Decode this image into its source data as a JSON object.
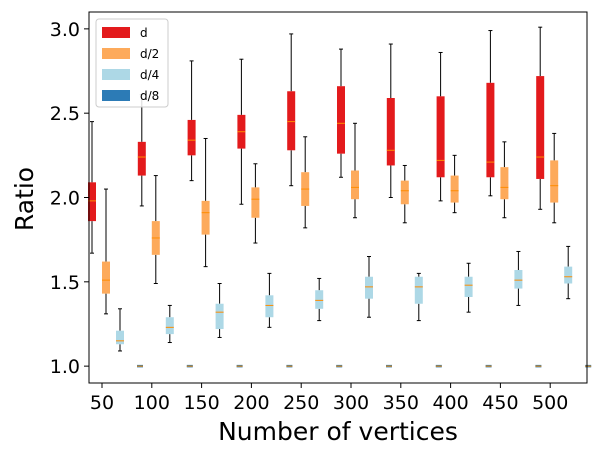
{
  "chart_data": {
    "type": "box",
    "xlabel": "Number of vertices",
    "ylabel": "Ratio",
    "ylim": [
      0.9,
      3.1
    ],
    "yticks": [
      "1.0",
      "1.5",
      "2.0",
      "2.5",
      "3.0"
    ],
    "categories": [
      "50",
      "100",
      "150",
      "200",
      "250",
      "300",
      "350",
      "400",
      "450",
      "500"
    ],
    "median_color": "#ff8c00",
    "legend_position": "top-left",
    "series": [
      {
        "name": "d",
        "color": "#e31a1c",
        "boxes": [
          {
            "whislo": 1.67,
            "q1": 1.86,
            "med": 1.98,
            "q3": 2.09,
            "whishi": 2.45
          },
          {
            "whislo": 1.95,
            "q1": 2.13,
            "med": 2.24,
            "q3": 2.33,
            "whishi": 2.61
          },
          {
            "whislo": 2.1,
            "q1": 2.25,
            "med": 2.34,
            "q3": 2.46,
            "whishi": 2.81
          },
          {
            "whislo": 1.96,
            "q1": 2.29,
            "med": 2.39,
            "q3": 2.49,
            "whishi": 2.82
          },
          {
            "whislo": 2.07,
            "q1": 2.28,
            "med": 2.45,
            "q3": 2.63,
            "whishi": 2.97
          },
          {
            "whislo": 2.12,
            "q1": 2.26,
            "med": 2.44,
            "q3": 2.66,
            "whishi": 2.88
          },
          {
            "whislo": 2.0,
            "q1": 2.19,
            "med": 2.28,
            "q3": 2.59,
            "whishi": 2.91
          },
          {
            "whislo": 1.98,
            "q1": 2.12,
            "med": 2.22,
            "q3": 2.6,
            "whishi": 2.86
          },
          {
            "whislo": 2.01,
            "q1": 2.12,
            "med": 2.21,
            "q3": 2.68,
            "whishi": 2.99
          },
          {
            "whislo": 1.93,
            "q1": 2.11,
            "med": 2.24,
            "q3": 2.72,
            "whishi": 3.01
          }
        ]
      },
      {
        "name": "d/2",
        "color": "#fdaa5b",
        "boxes": [
          {
            "whislo": 1.31,
            "q1": 1.43,
            "med": 1.51,
            "q3": 1.62,
            "whishi": 2.05
          },
          {
            "whislo": 1.49,
            "q1": 1.66,
            "med": 1.76,
            "q3": 1.86,
            "whishi": 2.13
          },
          {
            "whislo": 1.59,
            "q1": 1.78,
            "med": 1.91,
            "q3": 1.98,
            "whishi": 2.35
          },
          {
            "whislo": 1.73,
            "q1": 1.88,
            "med": 1.99,
            "q3": 2.06,
            "whishi": 2.2
          },
          {
            "whislo": 1.82,
            "q1": 1.95,
            "med": 2.05,
            "q3": 2.15,
            "whishi": 2.36
          },
          {
            "whislo": 1.88,
            "q1": 1.99,
            "med": 2.06,
            "q3": 2.16,
            "whishi": 2.44
          },
          {
            "whislo": 1.85,
            "q1": 1.96,
            "med": 2.04,
            "q3": 2.1,
            "whishi": 2.19
          },
          {
            "whislo": 1.91,
            "q1": 1.97,
            "med": 2.04,
            "q3": 2.13,
            "whishi": 2.25
          },
          {
            "whislo": 1.88,
            "q1": 1.99,
            "med": 2.06,
            "q3": 2.18,
            "whishi": 2.33
          },
          {
            "whislo": 1.85,
            "q1": 1.97,
            "med": 2.07,
            "q3": 2.22,
            "whishi": 2.38
          }
        ]
      },
      {
        "name": "d/4",
        "color": "#add8e6",
        "boxes": [
          {
            "whislo": 1.09,
            "q1": 1.13,
            "med": 1.15,
            "q3": 1.21,
            "whishi": 1.34
          },
          {
            "whislo": 1.14,
            "q1": 1.19,
            "med": 1.23,
            "q3": 1.29,
            "whishi": 1.36
          },
          {
            "whislo": 1.17,
            "q1": 1.22,
            "med": 1.32,
            "q3": 1.37,
            "whishi": 1.49
          },
          {
            "whislo": 1.23,
            "q1": 1.29,
            "med": 1.36,
            "q3": 1.42,
            "whishi": 1.55
          },
          {
            "whislo": 1.27,
            "q1": 1.34,
            "med": 1.39,
            "q3": 1.45,
            "whishi": 1.52
          },
          {
            "whislo": 1.29,
            "q1": 1.4,
            "med": 1.47,
            "q3": 1.53,
            "whishi": 1.65
          },
          {
            "whislo": 1.27,
            "q1": 1.37,
            "med": 1.47,
            "q3": 1.53,
            "whishi": 1.55
          },
          {
            "whislo": 1.32,
            "q1": 1.41,
            "med": 1.48,
            "q3": 1.53,
            "whishi": 1.61
          },
          {
            "whislo": 1.36,
            "q1": 1.46,
            "med": 1.51,
            "q3": 1.57,
            "whishi": 1.68
          },
          {
            "whislo": 1.4,
            "q1": 1.49,
            "med": 1.53,
            "q3": 1.59,
            "whishi": 1.71
          }
        ]
      },
      {
        "name": "d/8",
        "color": "#2c7bb6",
        "boxes": [
          {
            "whislo": 1.0,
            "q1": 1.0,
            "med": 1.0,
            "q3": 1.0,
            "whishi": 1.0
          },
          {
            "whislo": 1.0,
            "q1": 1.0,
            "med": 1.0,
            "q3": 1.0,
            "whishi": 1.0
          },
          {
            "whislo": 1.0,
            "q1": 1.0,
            "med": 1.0,
            "q3": 1.0,
            "whishi": 1.0
          },
          {
            "whislo": 1.0,
            "q1": 1.0,
            "med": 1.0,
            "q3": 1.0,
            "whishi": 1.0
          },
          {
            "whislo": 1.0,
            "q1": 1.0,
            "med": 1.0,
            "q3": 1.0,
            "whishi": 1.0
          },
          {
            "whislo": 1.0,
            "q1": 1.0,
            "med": 1.0,
            "q3": 1.0,
            "whishi": 1.0
          },
          {
            "whislo": 1.0,
            "q1": 1.0,
            "med": 1.0,
            "q3": 1.0,
            "whishi": 1.0
          },
          {
            "whislo": 1.0,
            "q1": 1.0,
            "med": 1.0,
            "q3": 1.0,
            "whishi": 1.0
          },
          {
            "whislo": 1.0,
            "q1": 1.0,
            "med": 1.0,
            "q3": 1.0,
            "whishi": 1.0
          },
          {
            "whislo": 1.0,
            "q1": 1.0,
            "med": 1.0,
            "q3": 1.0,
            "whishi": 1.0
          }
        ]
      }
    ]
  }
}
